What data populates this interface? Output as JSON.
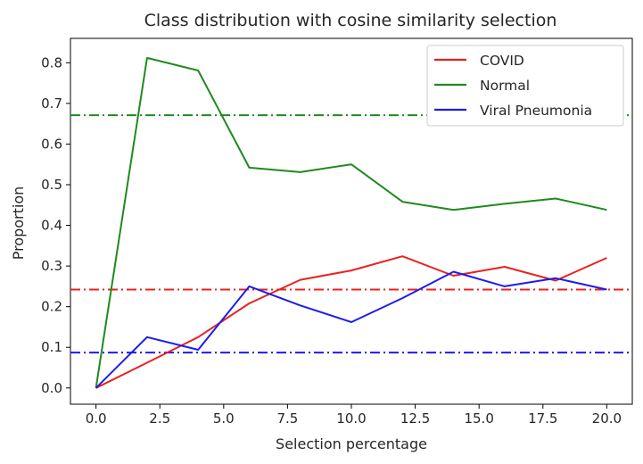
{
  "chart_data": {
    "type": "line",
    "title": "Class distribution with cosine similarity selection",
    "xlabel": "Selection percentage",
    "ylabel": "Proportion",
    "xlim": [
      -1.0,
      21.0
    ],
    "ylim": [
      -0.04,
      0.86
    ],
    "x_ticks": [
      0.0,
      2.5,
      5.0,
      7.5,
      10.0,
      12.5,
      15.0,
      17.5,
      20.0
    ],
    "x_tick_labels": [
      "0.0",
      "2.5",
      "5.0",
      "7.5",
      "10.0",
      "12.5",
      "15.0",
      "17.5",
      "20.0"
    ],
    "y_ticks": [
      0.0,
      0.1,
      0.2,
      0.3,
      0.4,
      0.5,
      0.6,
      0.7,
      0.8
    ],
    "y_tick_labels": [
      "0.0",
      "0.1",
      "0.2",
      "0.3",
      "0.4",
      "0.5",
      "0.6",
      "0.7",
      "0.8"
    ],
    "grid": false,
    "legend_position": "top-right",
    "x": [
      0,
      2,
      4,
      6,
      8,
      10,
      12,
      14,
      16,
      18,
      20
    ],
    "series": [
      {
        "name": "COVID",
        "color": "#e8221f",
        "values": [
          0.0,
          0.062,
          0.125,
          0.208,
          0.266,
          0.289,
          0.324,
          0.276,
          0.298,
          0.264,
          0.32
        ]
      },
      {
        "name": "Normal",
        "color": "#1f8a1f",
        "values": [
          0.0,
          0.812,
          0.781,
          0.542,
          0.531,
          0.55,
          0.458,
          0.438,
          0.453,
          0.466,
          0.438
        ]
      },
      {
        "name": "Viral Pneumonia",
        "color": "#1c1cf0",
        "values": [
          0.0,
          0.125,
          0.094,
          0.25,
          0.203,
          0.162,
          0.221,
          0.286,
          0.25,
          0.27,
          0.242
        ]
      }
    ],
    "reference_lines": [
      {
        "series": "COVID",
        "color": "#e8221f",
        "y": 0.242,
        "style": "dash-dot"
      },
      {
        "series": "Normal",
        "color": "#1f8a1f",
        "y": 0.671,
        "style": "dash-dot"
      },
      {
        "series": "Viral Pneumonia",
        "color": "#1c1cf0",
        "y": 0.087,
        "style": "dash-dot"
      }
    ]
  }
}
